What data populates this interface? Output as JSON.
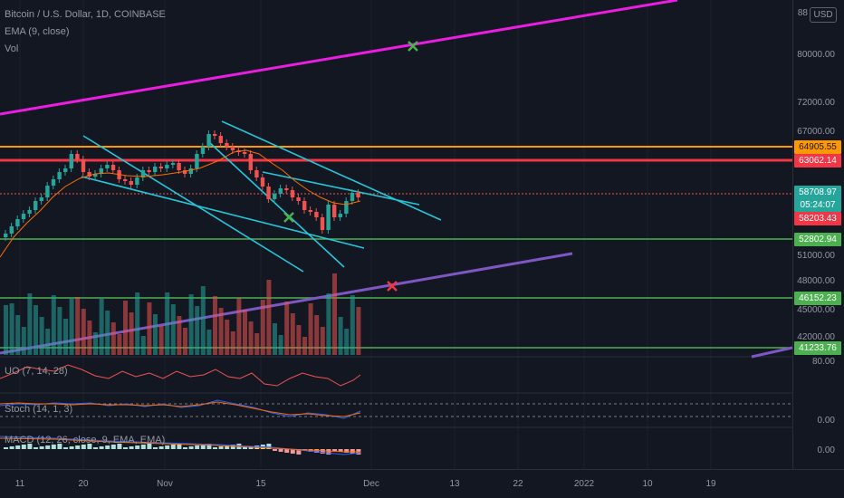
{
  "legend": {
    "symbol": "Bitcoin / U.S. Dollar, 1D, COINBASE",
    "ema": "EMA (9, close)",
    "vol": "Vol"
  },
  "panes": {
    "uo": "UO (7, 14, 28)",
    "stoch": "Stoch (14, 1, 3)",
    "macd": "MACD (12, 26, close, 9, EMA, EMA)"
  },
  "currency_button": "USD",
  "price_axis": {
    "ticks": [
      "88",
      "80000.00",
      "72000.00",
      "67000.00",
      "51000.00",
      "48000.00",
      "45000.00",
      "42000.00"
    ],
    "uo_tick": "80.00",
    "stoch_tick": "0.00",
    "macd_tick": "0.00"
  },
  "time_axis": [
    "11",
    "20",
    "Nov",
    "15",
    "Dec",
    "13",
    "22",
    "2022",
    "10",
    "19"
  ],
  "price_tags": [
    {
      "label": "64905.55",
      "color": "#ff9800"
    },
    {
      "label": "63062.14",
      "color": "#f23645"
    },
    {
      "label": "58708.97",
      "color": "#26a69a"
    },
    {
      "label": "05:24:07",
      "color": "#26a69a"
    },
    {
      "label": "58203.43",
      "color": "#f23645"
    },
    {
      "label": "52802.94",
      "color": "#4caf50"
    },
    {
      "label": "46152.23",
      "color": "#4caf50"
    },
    {
      "label": "41233.76",
      "color": "#4caf50"
    }
  ],
  "colors": {
    "up": "#26a69a",
    "down": "#ef5350",
    "magenta_trend": "#e91ee0",
    "purple_trend": "#7e57c2",
    "channel": "#26c6da",
    "orange_level": "#ff9800",
    "red_level": "#f23645",
    "green_level": "#4caf50"
  }
}
